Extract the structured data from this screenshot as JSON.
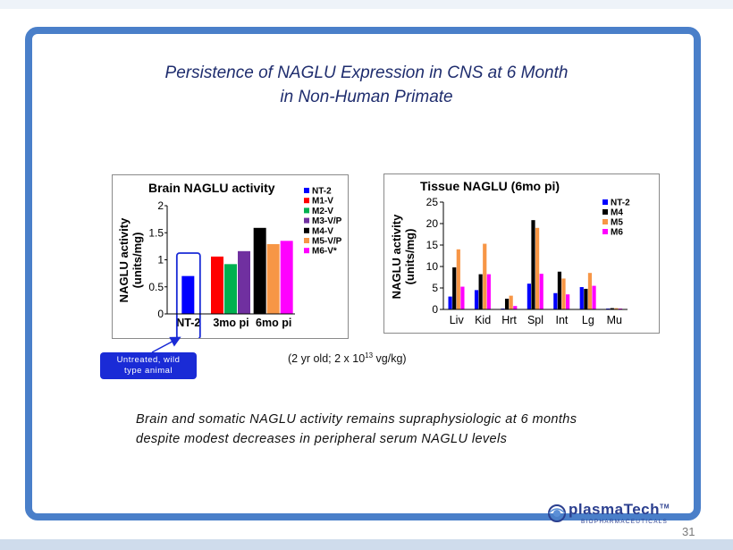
{
  "slide": {
    "title_line1": "Persistence of NAGLU Expression in CNS at 6 Month",
    "title_line2": "in Non-Human Primate",
    "callout_line1": "Untreated, wild",
    "callout_line2": "type animal",
    "dose_prefix": "(2 yr old; 2 x 10",
    "dose_exponent": "13",
    "dose_suffix": " vg/kg)",
    "summary_line1": "Brain and somatic NAGLU activity remains supraphysiologic at 6 months",
    "summary_line2": "despite modest decreases in peripheral serum NAGLU levels",
    "logo_name": "plasmaTech",
    "logo_trademark": "TM",
    "logo_subtitle": "BIOPHARMACEUTICALS",
    "page_number": "31",
    "frame_color": "#4a7fc9"
  },
  "chart_data": [
    {
      "type": "bar",
      "title": "Brain NAGLU activity",
      "ylabel_line1": "NAGLU activity",
      "ylabel_line2": "(units/mg)",
      "ylim": [
        0,
        2
      ],
      "yticks": [
        "0",
        "0.5",
        "1",
        "1.5",
        "2"
      ],
      "legend_position": "top-right",
      "groups": [
        {
          "label": "NT-2",
          "bars": [
            {
              "series": "NT-2",
              "value": 0.7
            }
          ]
        },
        {
          "label": "3mo pi",
          "bars": [
            {
              "series": "M1-V",
              "value": 1.06
            },
            {
              "series": "M2-V",
              "value": 0.92
            },
            {
              "series": "M3-V/P",
              "value": 1.16
            }
          ]
        },
        {
          "label": "6mo pi",
          "bars": [
            {
              "series": "M4-V",
              "value": 1.59
            },
            {
              "series": "M5-V/P",
              "value": 1.29
            },
            {
              "series": "M6-V*",
              "value": 1.35
            }
          ]
        }
      ],
      "legend": [
        {
          "name": "NT-2",
          "color": "#0000ff"
        },
        {
          "name": "M1-V",
          "color": "#ff0000"
        },
        {
          "name": "M2-V",
          "color": "#00b050"
        },
        {
          "name": "M3-V/P",
          "color": "#7030a0"
        },
        {
          "name": "M4-V",
          "color": "#000000"
        },
        {
          "name": "M5-V/P",
          "color": "#f79646"
        },
        {
          "name": "M6-V*",
          "color": "#ff00ff"
        }
      ],
      "highlight_group": "NT-2"
    },
    {
      "type": "bar",
      "title": "Tissue NAGLU (6mo pi)",
      "ylabel_line1": "NAGLU activity",
      "ylabel_line2": "(units/mg)",
      "ylim": [
        0,
        25
      ],
      "yticks": [
        "0",
        "5",
        "10",
        "15",
        "20",
        "25"
      ],
      "legend_position": "top-right",
      "categories": [
        "Liv",
        "Kid",
        "Hrt",
        "Spl",
        "Int",
        "Lg",
        "Mu"
      ],
      "series": [
        {
          "name": "NT-2",
          "color": "#0000ff",
          "values": [
            3.0,
            4.5,
            0.2,
            6.0,
            3.8,
            5.2,
            0.2
          ]
        },
        {
          "name": "M4",
          "color": "#000000",
          "values": [
            9.8,
            8.2,
            2.5,
            20.8,
            8.8,
            4.8,
            0.3
          ]
        },
        {
          "name": "M5",
          "color": "#f79646",
          "values": [
            14.0,
            15.3,
            3.2,
            19.0,
            7.2,
            8.5,
            0.3
          ]
        },
        {
          "name": "M6",
          "color": "#ff00ff",
          "values": [
            5.3,
            8.2,
            0.8,
            8.3,
            3.5,
            5.5,
            0.2
          ]
        }
      ]
    }
  ]
}
